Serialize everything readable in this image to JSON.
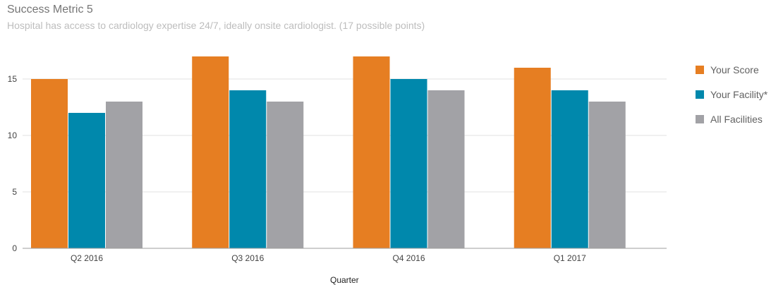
{
  "header": {
    "title": "Success Metric 5",
    "subtitle": "Hospital has access to cardiology expertise 24/7, ideally onsite cardiologist. (17 possible points)"
  },
  "colors": {
    "your_score": "#e67e22",
    "your_facility": "#0088ac",
    "all_facilities": "#a2a2a6",
    "gridline": "#e0e0e0",
    "axis": "#9e9e9e",
    "tick_text": "#424242"
  },
  "chart_data": {
    "type": "bar",
    "title": "Success Metric 5",
    "subtitle": "Hospital has access to cardiology expertise 24/7, ideally onsite cardiologist. (17 possible points)",
    "xlabel": "Quarter",
    "ylabel": "",
    "categories": [
      "Q2 2016",
      "Q3 2016",
      "Q4 2016",
      "Q1 2017"
    ],
    "series": [
      {
        "name": "Your Score",
        "values": [
          15,
          17,
          17,
          16
        ],
        "color": "#e67e22"
      },
      {
        "name": "Your Facility*",
        "values": [
          12,
          14,
          15,
          14
        ],
        "color": "#0088ac"
      },
      {
        "name": "All Facilities",
        "values": [
          13,
          13,
          14,
          13
        ],
        "color": "#a2a2a6"
      }
    ],
    "ylim": [
      0,
      17.5
    ],
    "yticks": [
      "0",
      "5",
      "10",
      "15"
    ],
    "grid": true,
    "legend_position": "right"
  }
}
